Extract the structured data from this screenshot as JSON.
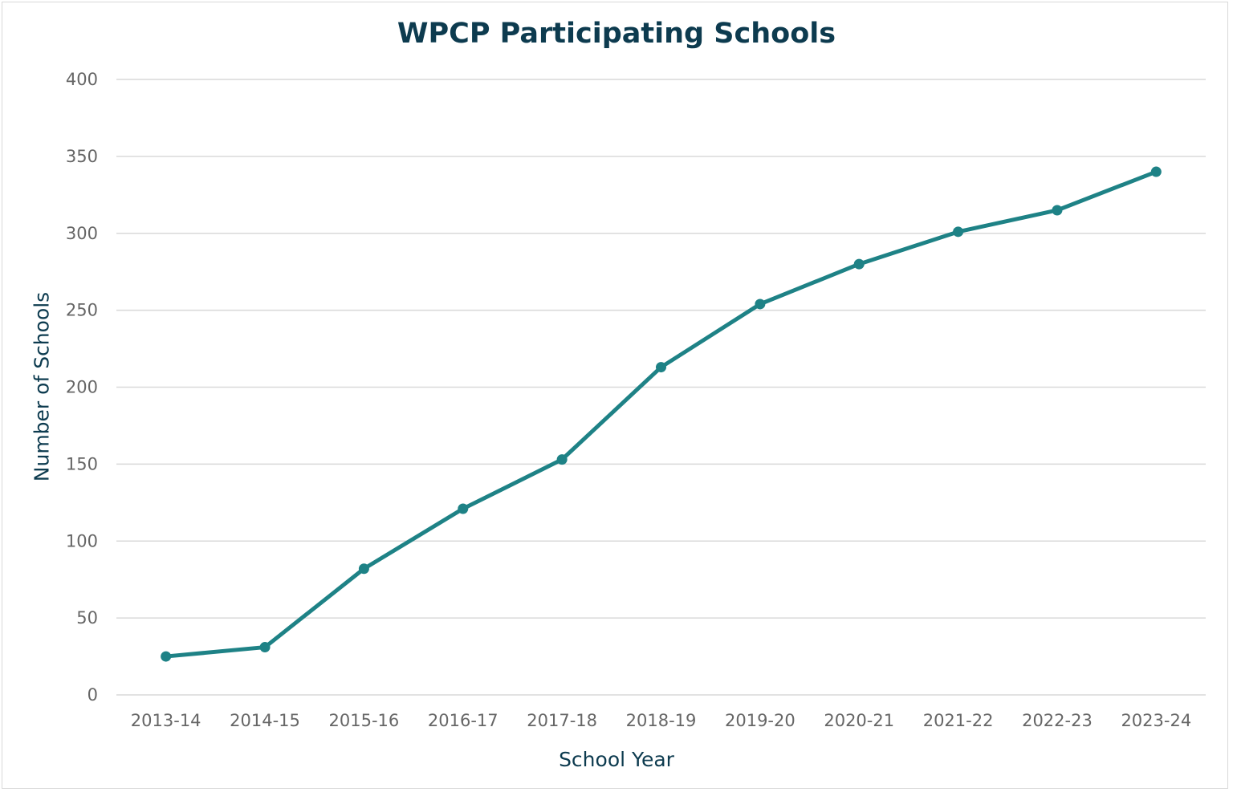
{
  "chart_data": {
    "type": "line",
    "title": "WPCP Participating Schools",
    "xlabel": "School Year",
    "ylabel": "Number of Schools",
    "categories": [
      "2013-14",
      "2014-15",
      "2015-16",
      "2016-17",
      "2017-18",
      "2018-19",
      "2019-20",
      "2020-21",
      "2021-22",
      "2022-23",
      "2023-24"
    ],
    "values": [
      25,
      31,
      82,
      121,
      153,
      213,
      254,
      280,
      301,
      315,
      340
    ],
    "ylim": [
      0,
      400
    ],
    "yticks": [
      0,
      50,
      100,
      150,
      200,
      250,
      300,
      350,
      400
    ],
    "grid": true,
    "legend": "none",
    "colors": {
      "line": "#1e8286",
      "title": "#0d3b4f",
      "grid": "#d9d9d9"
    }
  }
}
